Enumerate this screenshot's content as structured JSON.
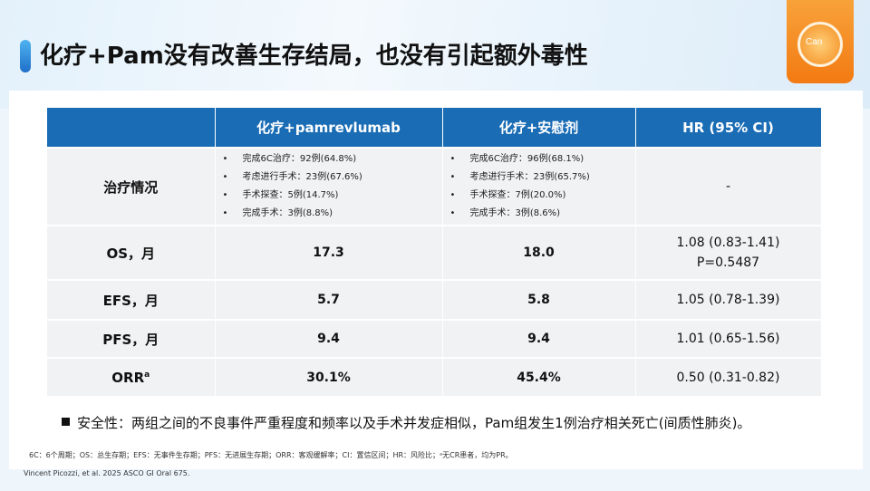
{
  "title": "化疗+Pam没有改善生存结局，也没有引起额外毒性",
  "badge_text": "Can",
  "table": {
    "headers": [
      "",
      "化疗+pamrevlumab",
      "化疗+安慰剂",
      "HR (95% CI)"
    ],
    "treatment": {
      "label": "治疗情况",
      "pam": [
        "完成6C治疗：92例(64.8%)",
        "考虑进行手术：23例(67.6%)",
        "手术探查：5例(14.7%)",
        "完成手术：3例(8.8%)"
      ],
      "placebo": [
        "完成6C治疗：96例(68.1%)",
        "考虑进行手术：23例(65.7%)",
        "手术探查：7例(20.0%)",
        "完成手术：3例(8.6%)"
      ],
      "hr": "-"
    },
    "rows": [
      {
        "label": "OS，月",
        "pam": "17.3",
        "placebo": "18.0",
        "hr": "1.08 (0.83-1.41)",
        "p": "P=0.5487"
      },
      {
        "label": "EFS，月",
        "pam": "5.7",
        "placebo": "5.8",
        "hr": "1.05 (0.78-1.39)"
      },
      {
        "label": "PFS，月",
        "pam": "9.4",
        "placebo": "9.4",
        "hr": "1.01 (0.65-1.56)"
      },
      {
        "label": "ORR",
        "sup": "a",
        "pam": "30.1%",
        "placebo": "45.4%",
        "hr": "0.50 (0.31-0.82)"
      }
    ]
  },
  "bullet_char": "•",
  "safety": "安全性：两组之间的不良事件严重程度和频率以及手术并发症相似，Pam组发生1例治疗相关死亡(间质性肺炎)。",
  "footnote": "6C：6个周期；OS：总生存期；EFS：无事件生存期；PFS：无进展生存期；ORR：客观缓解率；CI：置信区间；HR：风险比；ᵃ无CR患者，均为PR。",
  "reference": "Vincent Picozzi, et al. 2025 ASCO GI Oral 675.",
  "colors": {
    "header_bg": "#1a6cb5",
    "cell_bg": "#f1f2f4",
    "badge": "#f37a12",
    "title_bar": "#1f6fc9"
  }
}
